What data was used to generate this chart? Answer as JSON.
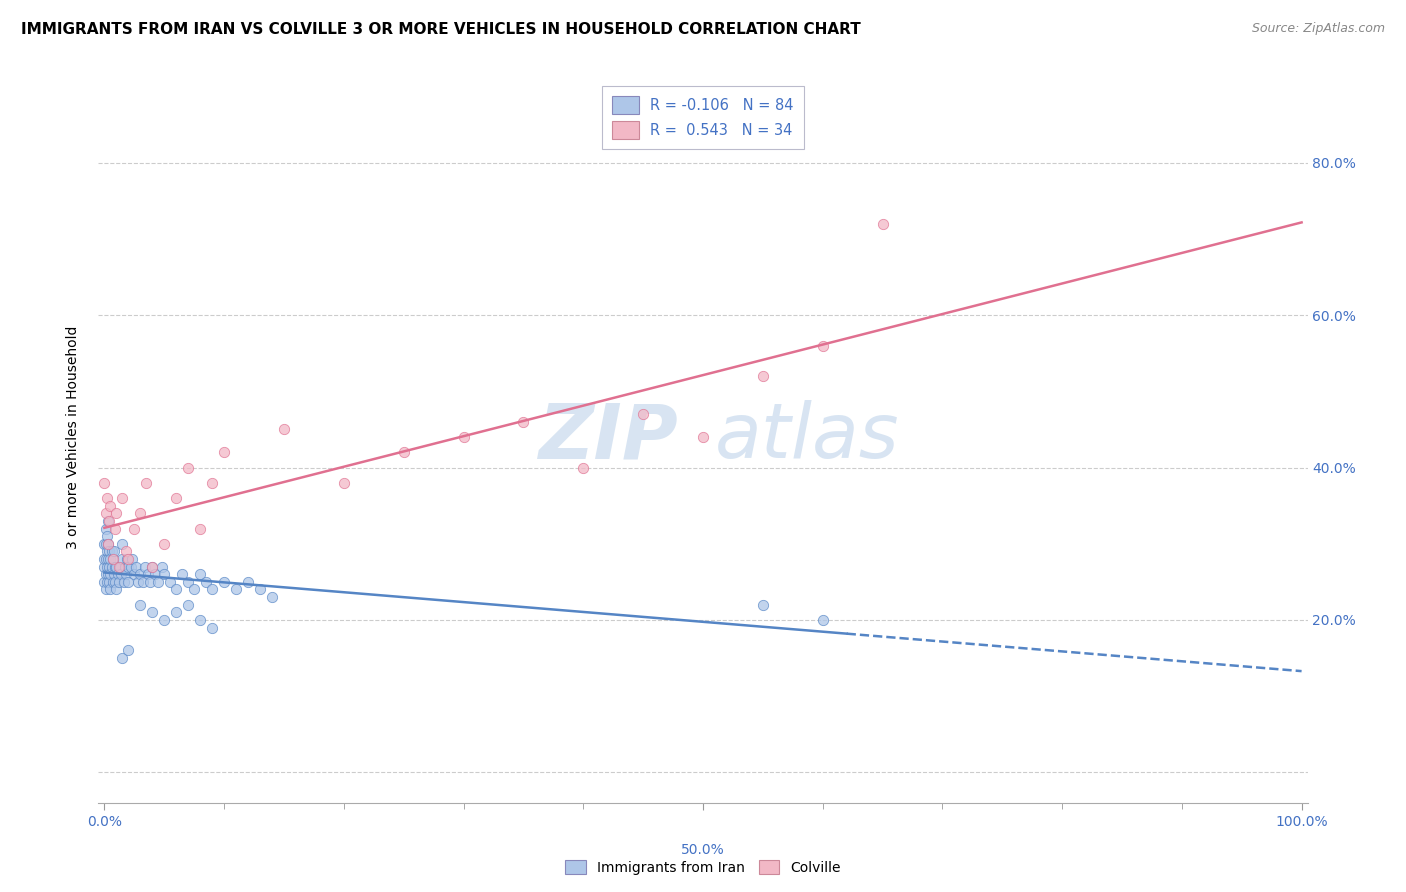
{
  "title": "IMMIGRANTS FROM IRAN VS COLVILLE 3 OR MORE VEHICLES IN HOUSEHOLD CORRELATION CHART",
  "source": "Source: ZipAtlas.com",
  "ylabel": "3 or more Vehicles in Household",
  "blue_R": -0.106,
  "blue_N": 84,
  "pink_R": 0.543,
  "pink_N": 34,
  "blue_color": "#aec6e8",
  "pink_color": "#f2b8c6",
  "blue_line_color": "#5585c5",
  "pink_line_color": "#e07090",
  "legend_blue_label": "Immigrants from Iran",
  "legend_pink_label": "Colville",
  "watermark_zip": "ZIP",
  "watermark_atlas": "atlas",
  "blue_scatter_x": [
    0.0,
    0.0,
    0.0,
    0.0,
    0.001,
    0.001,
    0.001,
    0.001,
    0.001,
    0.002,
    0.002,
    0.002,
    0.002,
    0.003,
    0.003,
    0.003,
    0.003,
    0.004,
    0.004,
    0.004,
    0.005,
    0.005,
    0.005,
    0.006,
    0.006,
    0.007,
    0.007,
    0.008,
    0.008,
    0.009,
    0.009,
    0.01,
    0.01,
    0.011,
    0.012,
    0.013,
    0.014,
    0.015,
    0.015,
    0.016,
    0.017,
    0.018,
    0.019,
    0.02,
    0.02,
    0.022,
    0.023,
    0.025,
    0.026,
    0.028,
    0.03,
    0.032,
    0.034,
    0.036,
    0.038,
    0.04,
    0.042,
    0.045,
    0.048,
    0.05,
    0.055,
    0.06,
    0.065,
    0.07,
    0.075,
    0.08,
    0.085,
    0.09,
    0.1,
    0.11,
    0.12,
    0.13,
    0.14,
    0.015,
    0.02,
    0.03,
    0.04,
    0.05,
    0.06,
    0.07,
    0.08,
    0.09,
    0.55,
    0.6
  ],
  "blue_scatter_y": [
    0.25,
    0.27,
    0.28,
    0.3,
    0.24,
    0.26,
    0.28,
    0.3,
    0.32,
    0.25,
    0.27,
    0.29,
    0.31,
    0.26,
    0.28,
    0.3,
    0.33,
    0.25,
    0.27,
    0.29,
    0.24,
    0.26,
    0.28,
    0.27,
    0.29,
    0.25,
    0.28,
    0.26,
    0.29,
    0.25,
    0.27,
    0.24,
    0.27,
    0.26,
    0.25,
    0.27,
    0.26,
    0.28,
    0.3,
    0.25,
    0.27,
    0.26,
    0.28,
    0.25,
    0.27,
    0.27,
    0.28,
    0.26,
    0.27,
    0.25,
    0.26,
    0.25,
    0.27,
    0.26,
    0.25,
    0.27,
    0.26,
    0.25,
    0.27,
    0.26,
    0.25,
    0.24,
    0.26,
    0.25,
    0.24,
    0.26,
    0.25,
    0.24,
    0.25,
    0.24,
    0.25,
    0.24,
    0.23,
    0.15,
    0.16,
    0.22,
    0.21,
    0.2,
    0.21,
    0.22,
    0.2,
    0.19,
    0.22,
    0.2
  ],
  "pink_scatter_x": [
    0.0,
    0.001,
    0.002,
    0.003,
    0.004,
    0.005,
    0.007,
    0.009,
    0.01,
    0.012,
    0.015,
    0.018,
    0.02,
    0.025,
    0.03,
    0.035,
    0.04,
    0.05,
    0.06,
    0.07,
    0.08,
    0.09,
    0.1,
    0.15,
    0.2,
    0.25,
    0.3,
    0.35,
    0.4,
    0.45,
    0.5,
    0.55,
    0.6,
    0.65
  ],
  "pink_scatter_y": [
    0.38,
    0.34,
    0.36,
    0.3,
    0.33,
    0.35,
    0.28,
    0.32,
    0.34,
    0.27,
    0.36,
    0.29,
    0.28,
    0.32,
    0.34,
    0.38,
    0.27,
    0.3,
    0.36,
    0.4,
    0.32,
    0.38,
    0.42,
    0.45,
    0.38,
    0.42,
    0.44,
    0.46,
    0.4,
    0.47,
    0.44,
    0.52,
    0.56,
    0.72
  ]
}
